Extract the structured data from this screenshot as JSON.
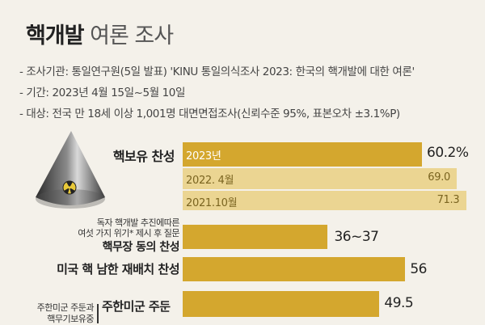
{
  "title": {
    "bold": "핵개발",
    "light": "여론 조사"
  },
  "meta": [
    "- 조사기관: 통일연구원(5일 발표) 'KINU 통일의식조사 2023: 한국의 핵개발에 대한 여론'",
    "- 기간: 2023년 4월 15일~5월 10일",
    "- 대상: 전국 만 18세 이상 1,001명 대면면접조사(신뢰수준 95%, 표본오차 ±3.1%P)"
  ],
  "icon": "nuclear-cone-icon",
  "colors": {
    "main_bar": "#d4a72e",
    "past_bar": "#ebd592",
    "bar_text_past": "#7a6420",
    "background": "#f4f1ea"
  },
  "chart_data": {
    "type": "bar",
    "orientation": "horizontal",
    "unit": "%",
    "items": [
      {
        "label": "핵보유 찬성",
        "bars": [
          {
            "name": "2023년",
            "value": 60.2,
            "display": "60.2%"
          },
          {
            "name": "2022. 4월",
            "value": 69.0,
            "display": "69.0"
          },
          {
            "name": "2021.10월",
            "value": 71.3,
            "display": "71.3"
          }
        ]
      },
      {
        "label": "핵무장 동의 찬성",
        "note": "독자 핵개발 추진에따른|여섯 가지 위기* 제시 후 질문",
        "bars": [
          {
            "name": "",
            "value": 36.5,
            "display": "36~37"
          }
        ]
      },
      {
        "label": "미국 핵 남한 재배치 찬성",
        "bars": [
          {
            "name": "",
            "value": 56,
            "display": "56"
          }
        ]
      },
      {
        "label": "주한미군 주둔",
        "note": "주한미군 주둔과|핵무기보유중",
        "bars": [
          {
            "name": "",
            "value": 49.5,
            "display": "49.5"
          }
        ]
      }
    ]
  }
}
